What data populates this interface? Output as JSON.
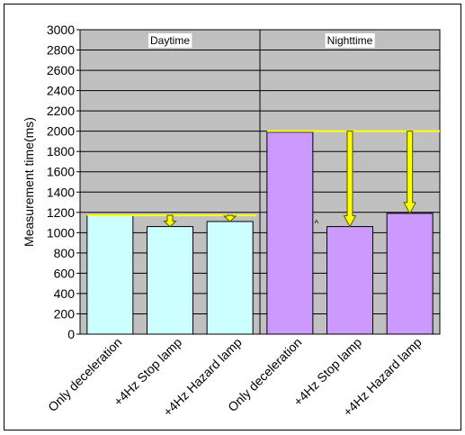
{
  "chart_data": {
    "type": "bar",
    "title": "",
    "ylabel": "Measurement time(ms)",
    "xlabel": "",
    "ylim": [
      0,
      3000
    ],
    "ytick_step": 200,
    "grid": true,
    "legend": "none",
    "categories": [
      "Only deceleration",
      "+4Hz Stop lamp",
      "+4Hz Hazard lamp",
      "Only deceleration",
      "+4Hz Stop lamp",
      "+4Hz Hazard lamp"
    ],
    "values": [
      1170,
      1060,
      1110,
      1990,
      1060,
      1190
    ],
    "groups": [
      {
        "label": "Daytime",
        "color": "#ccffff",
        "indices": [
          0,
          1,
          2
        ],
        "reference": 1170
      },
      {
        "label": "Nighttime",
        "color": "#cc99ff",
        "indices": [
          3,
          4,
          5
        ],
        "reference": 2000
      }
    ],
    "annotations": {
      "reference_line_color": "#ffff00",
      "arrow_color": "#ffff00",
      "plot_background": "#c0c0c0",
      "stray_mark": "^"
    }
  }
}
